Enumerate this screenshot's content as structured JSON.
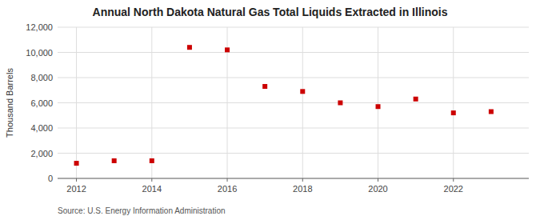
{
  "chart_data": {
    "type": "scatter",
    "title": "Annual North Dakota Natural Gas Total Liquids Extracted in Illinois",
    "y_label": "Thousand Barrels",
    "source": "Source: U.S. Energy Information Administration",
    "x": [
      2012,
      2013,
      2014,
      2015,
      2016,
      2017,
      2018,
      2019,
      2020,
      2021,
      2022,
      2023
    ],
    "values": [
      1200,
      1400,
      1400,
      10400,
      10200,
      7300,
      6900,
      6000,
      5700,
      6300,
      5200,
      5300
    ],
    "color": "#cc0000",
    "marker": "square",
    "xlim": [
      2011.5,
      2024.0
    ],
    "ylim": [
      0,
      12000
    ],
    "xticks": [
      2012,
      2014,
      2016,
      2018,
      2020,
      2022
    ],
    "yticks": [
      0,
      {
        "value": 2000,
        "label": "2,000"
      },
      {
        "value": 4000,
        "label": "4,000"
      },
      {
        "value": 6000,
        "label": "6,000"
      },
      {
        "value": 8000,
        "label": "8,000"
      },
      {
        "value": 10000,
        "label": "10,000"
      },
      {
        "value": 12000,
        "label": "12,000"
      }
    ],
    "grid": true
  }
}
